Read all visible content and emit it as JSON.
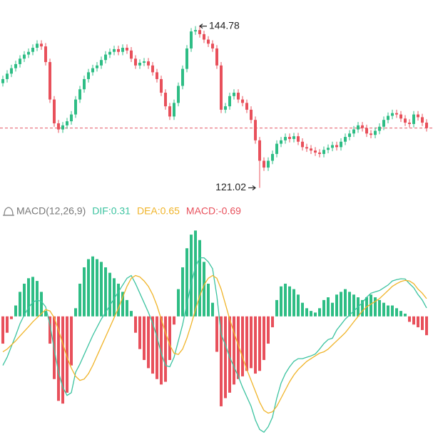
{
  "chart_data": [
    {
      "type": "candlestick",
      "open": [
        136.4,
        137.0,
        137.8,
        138.6,
        139.2,
        140.0,
        140.6,
        141.0,
        141.6,
        142.2,
        141.8,
        139.5,
        134.0,
        130.5,
        129.6,
        130.2,
        130.8,
        131.8,
        134.0,
        135.5,
        137.0,
        138.0,
        138.6,
        139.0,
        139.8,
        140.6,
        141.0,
        141.4,
        141.0,
        141.6,
        141.2,
        140.0,
        139.0,
        139.4,
        139.6,
        139.0,
        138.0,
        137.0,
        135.0,
        133.0,
        131.5,
        133.5,
        136.0,
        138.5,
        141.5,
        144.0,
        144.2,
        143.6,
        142.8,
        142.2,
        141.5,
        139.0,
        132.5,
        133.0,
        134.5,
        135.0,
        134.0,
        133.5,
        132.5,
        131.0,
        128.0,
        125.0,
        124.0,
        125.0,
        126.0,
        127.5,
        128.0,
        128.5,
        128.2,
        128.6,
        127.8,
        127.0,
        126.8,
        126.5,
        126.2,
        126.0,
        126.6,
        126.9,
        127.3,
        127.0,
        127.8,
        128.5,
        129.0,
        129.6,
        130.2,
        129.8,
        129.0,
        128.8,
        129.4,
        130.0,
        131.0,
        131.6,
        132.0,
        131.8,
        131.2,
        130.6,
        130.4,
        131.8,
        131.4,
        130.6
      ],
      "high": [
        137.5,
        138.3,
        139.1,
        139.7,
        140.5,
        141.1,
        141.5,
        142.1,
        142.7,
        142.7,
        142.3,
        140.0,
        134.5,
        131.0,
        130.7,
        131.3,
        132.3,
        134.5,
        136.0,
        137.5,
        138.5,
        139.1,
        139.5,
        140.3,
        141.1,
        141.5,
        141.9,
        141.9,
        142.1,
        142.1,
        141.7,
        140.5,
        139.9,
        140.1,
        140.1,
        139.5,
        138.5,
        137.5,
        135.5,
        133.5,
        134.0,
        136.5,
        139.0,
        142.0,
        144.5,
        144.78,
        144.7,
        144.1,
        143.3,
        142.7,
        142.0,
        139.5,
        133.5,
        135.0,
        135.5,
        135.5,
        134.5,
        134.0,
        133.0,
        131.5,
        128.5,
        125.5,
        125.5,
        126.5,
        128.0,
        128.5,
        129.0,
        129.0,
        129.1,
        129.1,
        128.3,
        127.5,
        127.3,
        127.0,
        126.7,
        127.1,
        127.4,
        127.8,
        127.8,
        128.3,
        129.0,
        129.5,
        130.1,
        130.7,
        130.7,
        130.3,
        129.5,
        129.9,
        130.5,
        131.5,
        132.1,
        132.5,
        132.5,
        132.3,
        131.7,
        131.1,
        132.3,
        132.3,
        131.9,
        131.1
      ],
      "low": [
        135.9,
        136.5,
        137.3,
        138.1,
        138.7,
        139.5,
        140.1,
        140.5,
        141.1,
        141.3,
        139.0,
        133.5,
        130.0,
        129.1,
        129.1,
        129.7,
        130.3,
        131.3,
        133.5,
        135.0,
        136.5,
        137.5,
        138.1,
        138.5,
        139.3,
        140.1,
        140.5,
        140.5,
        140.5,
        140.7,
        139.5,
        138.5,
        138.5,
        138.9,
        138.5,
        137.5,
        136.5,
        134.5,
        132.5,
        131.0,
        131.0,
        133.0,
        135.5,
        138.0,
        141.0,
        143.5,
        143.1,
        142.3,
        141.7,
        141.0,
        138.5,
        132.0,
        132.0,
        132.5,
        134.0,
        133.5,
        133.0,
        132.0,
        130.5,
        127.5,
        121.02,
        123.5,
        123.5,
        124.5,
        125.5,
        127.0,
        127.5,
        127.7,
        127.7,
        127.3,
        126.5,
        126.3,
        126.0,
        125.7,
        125.5,
        125.5,
        126.1,
        126.4,
        126.5,
        126.5,
        127.3,
        128.0,
        128.5,
        129.1,
        129.3,
        128.5,
        128.3,
        128.3,
        128.9,
        129.5,
        130.5,
        131.1,
        131.3,
        130.7,
        130.1,
        129.9,
        129.9,
        130.9,
        130.1,
        129.3
      ],
      "close": [
        137.0,
        137.8,
        138.6,
        139.2,
        140.0,
        140.6,
        141.0,
        141.6,
        142.2,
        141.8,
        139.5,
        134.0,
        130.5,
        129.6,
        130.2,
        130.8,
        131.8,
        134.0,
        135.5,
        137.0,
        138.0,
        138.6,
        139.0,
        139.8,
        140.6,
        141.0,
        141.4,
        141.0,
        141.6,
        141.2,
        140.0,
        139.0,
        139.4,
        139.6,
        139.0,
        138.0,
        137.0,
        135.0,
        133.0,
        131.5,
        133.5,
        136.0,
        138.5,
        141.5,
        144.0,
        144.2,
        143.6,
        142.8,
        142.2,
        141.5,
        139.0,
        132.5,
        133.0,
        134.5,
        135.0,
        134.0,
        133.5,
        132.5,
        131.0,
        128.0,
        125.0,
        124.0,
        125.0,
        126.0,
        127.5,
        128.0,
        128.5,
        128.2,
        128.6,
        127.8,
        127.0,
        126.8,
        126.5,
        126.2,
        126.0,
        126.6,
        126.9,
        127.3,
        127.0,
        127.8,
        128.5,
        129.0,
        129.6,
        130.2,
        129.8,
        129.0,
        128.8,
        129.4,
        130.0,
        131.0,
        131.6,
        132.0,
        131.8,
        131.2,
        130.6,
        130.4,
        131.8,
        131.4,
        130.6,
        129.8
      ],
      "up_color": "#2ebd85",
      "down_color": "#e8505b",
      "ylim": [
        119.5,
        148.2
      ],
      "price_line": 129.8,
      "price_line_color": "#e25563",
      "high_label": "144.78",
      "low_label": "121.02"
    },
    {
      "type": "macd",
      "title": "MACD(12,26,9)",
      "series": [
        {
          "label": "DIF:0.31",
          "color": "#3cc3a0",
          "values": [
            -1.8,
            -1.5,
            -1.1,
            -0.7,
            -0.27,
            0.05,
            0.32,
            0.52,
            0.6,
            0.55,
            0.35,
            -0.3,
            -1.2,
            -2.05,
            -2.6,
            -2.9,
            -2.8,
            -2.05,
            -1.75,
            -1.4,
            -1.05,
            -0.7,
            -0.4,
            -0.1,
            0.15,
            0.4,
            0.65,
            0.9,
            1.15,
            1.4,
            1.5,
            1.2,
            0.85,
            0.5,
            0.15,
            -0.25,
            -0.75,
            -1.35,
            -1.8,
            -1.85,
            -1.5,
            -0.9,
            -0.3,
            0.45,
            1.2,
            1.82,
            2.15,
            2.15,
            2.0,
            1.75,
            0.75,
            -0.65,
            -1.05,
            -1.5,
            -1.85,
            -2.2,
            -2.6,
            -2.95,
            -3.3,
            -3.8,
            -4.15,
            -4.25,
            -4.05,
            -3.7,
            -3.0,
            -2.45,
            -2.1,
            -1.85,
            -1.65,
            -1.55,
            -1.55,
            -1.5,
            -1.45,
            -1.38,
            -1.2,
            -1.0,
            -0.85,
            -0.8,
            -0.5,
            -0.3,
            -0.1,
            0.05,
            0.2,
            0.35,
            0.5,
            0.7,
            0.85,
            0.9,
            0.95,
            1.05,
            1.15,
            1.3,
            1.35,
            1.38,
            1.37,
            1.2,
            1.05,
            0.8,
            0.6,
            0.31
          ]
        },
        {
          "label": "DEA:0.65",
          "color": "#f0b429",
          "values": [
            -1.3,
            -1.2,
            -1.05,
            -0.9,
            -0.72,
            -0.55,
            -0.38,
            -0.2,
            -0.05,
            0.1,
            0.25,
            0.2,
            -0.05,
            -0.5,
            -1.0,
            -1.5,
            -1.9,
            -2.2,
            -2.35,
            -2.3,
            -2.1,
            -1.8,
            -1.45,
            -1.1,
            -0.75,
            -0.4,
            -0.05,
            0.3,
            0.7,
            1.1,
            1.4,
            1.5,
            1.45,
            1.3,
            1.1,
            0.8,
            0.4,
            -0.1,
            -0.6,
            -1.05,
            -1.35,
            -1.4,
            -1.2,
            -0.8,
            -0.3,
            0.25,
            0.75,
            1.15,
            1.4,
            1.5,
            1.4,
            1.0,
            0.45,
            -0.1,
            -0.6,
            -1.05,
            -1.5,
            -1.95,
            -2.35,
            -2.75,
            -3.15,
            -3.45,
            -3.55,
            -3.5,
            -3.3,
            -3.0,
            -2.7,
            -2.4,
            -2.15,
            -1.95,
            -1.8,
            -1.65,
            -1.55,
            -1.45,
            -1.35,
            -1.3,
            -1.2,
            -1.05,
            -0.9,
            -0.75,
            -0.6,
            -0.4,
            -0.2,
            0.0,
            0.2,
            0.35,
            0.45,
            0.55,
            0.65,
            0.8,
            0.95,
            1.1,
            1.2,
            1.28,
            1.32,
            1.3,
            1.2,
            1.0,
            0.85,
            0.65
          ]
        },
        {
          "label": "MACD:-0.69",
          "type": "bar",
          "color": "#e8505b",
          "up_color": "#2ebd85",
          "down_color": "#e8505b",
          "values": [
            -1.0,
            -0.6,
            -0.1,
            0.4,
            0.9,
            1.2,
            1.4,
            1.45,
            1.3,
            0.9,
            0.2,
            -1.0,
            -2.3,
            -3.1,
            -3.2,
            -2.8,
            -1.8,
            0.3,
            1.2,
            1.8,
            2.1,
            2.2,
            2.1,
            2.0,
            1.8,
            1.6,
            1.4,
            1.2,
            0.9,
            0.6,
            0.2,
            -0.6,
            -1.2,
            -1.6,
            -1.9,
            -2.1,
            -2.3,
            -2.5,
            -2.4,
            -1.6,
            -0.3,
            1.0,
            1.8,
            2.5,
            3.0,
            3.15,
            2.8,
            2.0,
            1.2,
            0.5,
            -1.3,
            -3.3,
            -3.0,
            -2.8,
            -2.5,
            -2.3,
            -2.2,
            -2.0,
            -1.9,
            -2.1,
            -2.0,
            -1.6,
            -1.0,
            -0.4,
            0.6,
            1.1,
            1.2,
            1.1,
            1.0,
            0.8,
            0.5,
            0.3,
            0.2,
            0.14,
            0.3,
            0.6,
            0.7,
            0.5,
            0.8,
            0.9,
            1.0,
            0.9,
            0.8,
            0.7,
            0.6,
            0.7,
            0.8,
            0.7,
            0.6,
            0.5,
            0.4,
            0.4,
            0.3,
            0.2,
            0.1,
            -0.2,
            -0.3,
            -0.4,
            -0.5,
            -0.69
          ]
        }
      ],
      "ylim": [
        -4.4,
        3.5
      ]
    }
  ]
}
